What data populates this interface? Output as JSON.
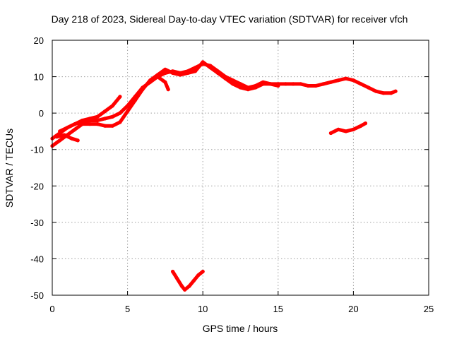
{
  "chart_data": {
    "type": "scatter",
    "title": "Day 218 of 2023, Sidereal Day-to-day VTEC variation (SDTVAR) for receiver vfch",
    "xlabel": "GPS time / hours",
    "ylabel": "SDTVAR / TECUs",
    "xlim": [
      0,
      25
    ],
    "ylim": [
      -50,
      20
    ],
    "xticks": [
      0,
      5,
      10,
      15,
      20,
      25
    ],
    "yticks": [
      -50,
      -40,
      -30,
      -20,
      -10,
      0,
      10,
      20
    ],
    "xtick_labels": [
      "0",
      "5",
      "10",
      "15",
      "20",
      "25"
    ],
    "ytick_labels": [
      "-50",
      "-40",
      "-30",
      "-20",
      "-10",
      "0",
      "10",
      "20"
    ],
    "grid": true,
    "series_color": "#ff0000",
    "series": [
      {
        "name": "main-track-a",
        "x": [
          0.0,
          0.5,
          1.0,
          1.5,
          2.0,
          2.5,
          3.0,
          3.5,
          4.0,
          4.5,
          5.0,
          5.5,
          6.0,
          6.5,
          7.0,
          7.5,
          8.0,
          8.5,
          9.0,
          9.5,
          10.0,
          10.5,
          11.0,
          11.5,
          12.0,
          12.5,
          13.0,
          13.5,
          14.0,
          14.5,
          15.0,
          15.5,
          16.0,
          16.5,
          17.0,
          17.5,
          18.0,
          18.5,
          19.0,
          19.5,
          20.0,
          20.5,
          21.0,
          21.5,
          22.0,
          22.5,
          22.8
        ],
        "y": [
          -7.0,
          -5.5,
          -4.0,
          -3.0,
          -2.5,
          -2.0,
          -2.0,
          -1.5,
          -1.0,
          0.0,
          2.0,
          4.5,
          7.0,
          8.5,
          10.0,
          11.0,
          11.5,
          11.0,
          11.5,
          12.5,
          13.5,
          13.0,
          11.5,
          10.0,
          9.0,
          8.0,
          7.0,
          7.5,
          8.5,
          8.0,
          8.0,
          8.0,
          8.0,
          8.0,
          7.5,
          7.5,
          8.0,
          8.5,
          9.0,
          9.5,
          9.0,
          8.0,
          7.0,
          6.0,
          5.5,
          5.5,
          6.0
        ]
      },
      {
        "name": "main-track-b",
        "x": [
          0.0,
          0.5,
          1.0,
          1.5,
          2.0,
          2.5,
          3.0,
          3.5,
          4.0,
          4.5,
          5.0,
          5.5,
          6.0,
          6.5,
          7.0,
          7.5,
          8.0,
          8.5,
          9.0,
          9.5,
          10.0,
          10.5,
          11.0,
          11.5,
          12.0,
          12.5,
          13.0,
          13.5,
          14.0,
          14.5,
          15.0
        ],
        "y": [
          -9.0,
          -7.5,
          -6.0,
          -4.5,
          -3.0,
          -3.0,
          -3.0,
          -3.5,
          -3.5,
          -2.5,
          0.5,
          3.5,
          6.5,
          9.0,
          10.5,
          12.0,
          11.0,
          10.5,
          11.0,
          11.5,
          14.0,
          12.5,
          11.0,
          9.5,
          8.0,
          7.0,
          6.5,
          7.0,
          8.0,
          8.0,
          7.5
        ]
      },
      {
        "name": "early-rise",
        "x": [
          0.5,
          1.0,
          1.5,
          2.0,
          2.5,
          3.0,
          3.5,
          4.0,
          4.5
        ],
        "y": [
          -5.0,
          -4.0,
          -3.0,
          -2.0,
          -1.5,
          -1.0,
          0.5,
          2.0,
          4.5
        ]
      },
      {
        "name": "early-drop",
        "x": [
          0.3,
          0.8,
          1.3,
          1.7
        ],
        "y": [
          -6.5,
          -6.0,
          -7.0,
          -7.5
        ]
      },
      {
        "name": "small-spur",
        "x": [
          7.0,
          7.5,
          7.7
        ],
        "y": [
          10.0,
          8.5,
          6.5
        ]
      },
      {
        "name": "afternoon-segment",
        "x": [
          18.5,
          19.0,
          19.5,
          20.0,
          20.5,
          20.8
        ],
        "y": [
          -5.5,
          -4.5,
          -5.0,
          -4.5,
          -3.5,
          -2.8
        ]
      },
      {
        "name": "low-dip-segment",
        "x": [
          8.0,
          8.3,
          8.6,
          8.8,
          9.1,
          9.4,
          9.7,
          10.0
        ],
        "y": [
          -43.5,
          -45.5,
          -47.5,
          -48.5,
          -47.5,
          -46.0,
          -44.5,
          -43.5
        ]
      }
    ]
  }
}
